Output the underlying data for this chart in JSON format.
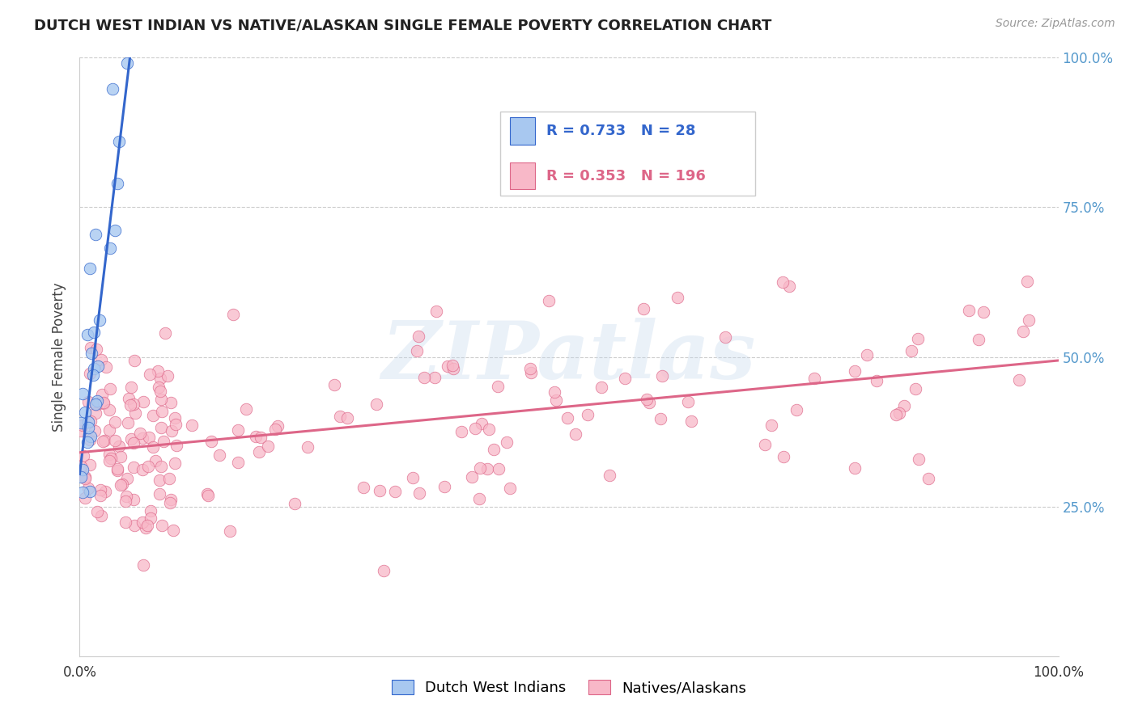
{
  "title": "DUTCH WEST INDIAN VS NATIVE/ALASKAN SINGLE FEMALE POVERTY CORRELATION CHART",
  "source": "Source: ZipAtlas.com",
  "ylabel": "Single Female Poverty",
  "r1": "0.733",
  "n1": "28",
  "r2": "0.353",
  "n2": "196",
  "color_blue_fill": "#a8c8f0",
  "color_pink_fill": "#f8b8c8",
  "color_blue_line": "#3366cc",
  "color_pink_line": "#dd6688",
  "color_ytick": "#5599cc",
  "legend1_label": "Dutch West Indians",
  "legend2_label": "Natives/Alaskans",
  "watermark_text": "ZIPatlas",
  "seed_blue": 42,
  "seed_pink": 99
}
